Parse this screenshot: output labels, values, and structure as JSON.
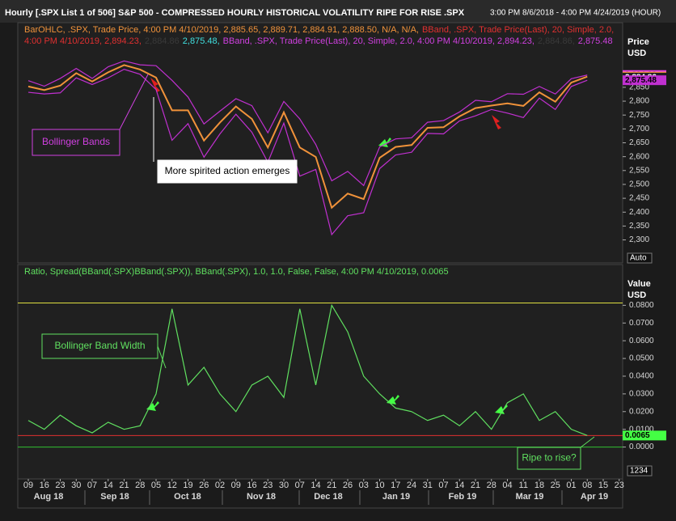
{
  "header": {
    "title": "Hourly [.SPX List 1 of 506] S&P 500 - COMPRESSED HOURLY HISTORICAL VOLATILITY RIPE FOR RISE .SPX",
    "range": "3:00 PM 8/6/2018 - 4:00 PM 4/24/2019 (HOUR)"
  },
  "chart_data": [
    {
      "type": "line",
      "legend": [
        {
          "text": "BarOHLC, .SPX, Trade Price, 4:00 PM 4/10/2019, 2,885.65, 2,889.71, 2,884.91, 2,888.50, N/A, N/A,",
          "color": "#f0923a"
        },
        {
          "text": "BBand, .SPX, Trade Price(Last), 20, Simple, 2.0, 4:00 PM 4/10/2019, 2,894.23,",
          "color": "#e03030"
        },
        {
          "text": "2,884.86",
          "color": "#3a3a3a"
        },
        {
          "text": "2,875.48,",
          "color": "#40e0e0"
        },
        {
          "text": "BBand, .SPX, Trade Price(Last), 20, Simple, 2.0, 4:00 PM 4/10/2019, 2,894.23,",
          "color": "#d040e0"
        },
        {
          "text": "2,884.86,",
          "color": "#3a3a3a"
        },
        {
          "text": "2,875.48",
          "color": "#d040e0"
        }
      ],
      "axis_label": "Price",
      "unit": "USD",
      "ylim": [
        2217,
        3083
      ],
      "yticks": [
        {
          "value": 2300,
          "label": "2,300"
        },
        {
          "value": 2350,
          "label": "2,350"
        },
        {
          "value": 2400,
          "label": "2,400"
        },
        {
          "value": 2450,
          "label": "2,450"
        },
        {
          "value": 2500,
          "label": "2,500"
        },
        {
          "value": 2550,
          "label": "2,550"
        },
        {
          "value": 2600,
          "label": "2,600"
        },
        {
          "value": 2650,
          "label": "2,650"
        },
        {
          "value": 2700,
          "label": "2,700"
        },
        {
          "value": 2750,
          "label": "2,750"
        },
        {
          "value": 2800,
          "label": "2,800"
        },
        {
          "value": 2850,
          "label": "2,850"
        }
      ],
      "series": [
        {
          "color": "#f0923a",
          "values": [
            2853,
            2840,
            2856,
            2901,
            2871,
            2904,
            2930,
            2914,
            2885,
            2767,
            2767,
            2658,
            2723,
            2781,
            2736,
            2633,
            2760,
            2633,
            2599,
            2416,
            2467,
            2447,
            2596,
            2635,
            2642,
            2704,
            2706,
            2745,
            2775,
            2784,
            2792,
            2783,
            2832,
            2798,
            2867,
            2888.5,
            null,
            null
          ]
        },
        {
          "color": "#c030d0",
          "values": [
            2874,
            2854,
            2882,
            2918,
            2882,
            2924,
            2945,
            2931,
            2928,
            2875,
            2815,
            2718,
            2764,
            2809,
            2784,
            2686,
            2799,
            2736,
            2644,
            2513,
            2547,
            2496,
            2635,
            2664,
            2668,
            2724,
            2730,
            2761,
            2803,
            2798,
            2827,
            2825,
            2853,
            2826,
            2881,
            2894.23,
            null,
            null
          ]
        },
        {
          "color": "#c030d0",
          "values": [
            2832,
            2826,
            2830,
            2884,
            2860,
            2884,
            2915,
            2897,
            2842,
            2659,
            2719,
            2598,
            2682,
            2753,
            2688,
            2580,
            2721,
            2530,
            2554,
            2319,
            2387,
            2398,
            2557,
            2606,
            2616,
            2684,
            2682,
            2729,
            2747,
            2770,
            2757,
            2741,
            2811,
            2770,
            2853,
            2875.48,
            null,
            null
          ]
        }
      ],
      "value_tags": [
        {
          "value": 2894.23,
          "label": "2,894.23",
          "color": "#e040e0"
        },
        {
          "value": 2888.5,
          "label": "2,888.50",
          "color": "#f0923a"
        },
        {
          "value": 2884.86,
          "label": "2,884.86",
          "color": "#202020"
        },
        {
          "value": 2875.48,
          "label": "2,875.48",
          "color": "#c030d0"
        }
      ],
      "annotations": [
        "Bollinger Bands",
        "More spirited action emerges"
      ],
      "button": "Auto"
    },
    {
      "type": "line",
      "legend": [
        {
          "text": "Ratio, Spread(BBand(.SPX)BBand(.SPX)), BBand(.SPX), 1.0, 1.0, False, False, 4:00 PM 4/10/2019, 0.0065",
          "color": "#60e060"
        }
      ],
      "axis_label": "Value",
      "unit": "USD",
      "ylim": [
        -0.018,
        0.103
      ],
      "yticks": [
        {
          "value": 0,
          "label": "0.0000"
        },
        {
          "value": 0.01,
          "label": "0.0100"
        },
        {
          "value": 0.02,
          "label": "0.0200"
        },
        {
          "value": 0.03,
          "label": "0.0300"
        },
        {
          "value": 0.04,
          "label": "0.0400"
        },
        {
          "value": 0.05,
          "label": "0.0500"
        },
        {
          "value": 0.06,
          "label": "0.0600"
        },
        {
          "value": 0.07,
          "label": "0.0700"
        },
        {
          "value": 0.08,
          "label": "0.0800"
        }
      ],
      "series": [
        {
          "color": "#60e060",
          "values": [
            0.015,
            0.01,
            0.018,
            0.012,
            0.008,
            0.014,
            0.01,
            0.012,
            0.03,
            0.078,
            0.035,
            0.045,
            0.03,
            0.02,
            0.035,
            0.04,
            0.028,
            0.078,
            0.035,
            0.08,
            0.065,
            0.04,
            0.03,
            0.022,
            0.02,
            0.015,
            0.018,
            0.012,
            0.02,
            0.01,
            0.025,
            0.03,
            0.015,
            0.02,
            0.01,
            0.0065,
            null,
            null
          ]
        }
      ],
      "reference_lines": [
        {
          "value": 0.0813,
          "color": "#e0e040"
        },
        {
          "value": 0.0065,
          "color": "#e03030"
        },
        {
          "value": 0,
          "color": "#30c030"
        }
      ],
      "value_tags": [
        {
          "value": 0.0065,
          "label": "0.0065",
          "color": "#44ff44"
        }
      ],
      "annotations": [
        "Bollinger Band Width",
        "Ripe to rise?"
      ],
      "button": "1234"
    }
  ],
  "x_axis": {
    "categories": [
      "09",
      "16",
      "23",
      "30",
      "07",
      "14",
      "21",
      "28",
      "05",
      "12",
      "19",
      "26",
      "02",
      "09",
      "16",
      "23",
      "30",
      "07",
      "14",
      "21",
      "26",
      "03",
      "10",
      "17",
      "24",
      "31",
      "07",
      "14",
      "21",
      "28",
      "04",
      "11",
      "18",
      "25",
      "01",
      "08",
      "15",
      "23"
    ],
    "months": [
      "Aug 18",
      "Sep 18",
      "Oct 18",
      "Nov 18",
      "Dec 18",
      "Jan 19",
      "Feb 19",
      "Mar 19",
      "Apr 19"
    ]
  }
}
